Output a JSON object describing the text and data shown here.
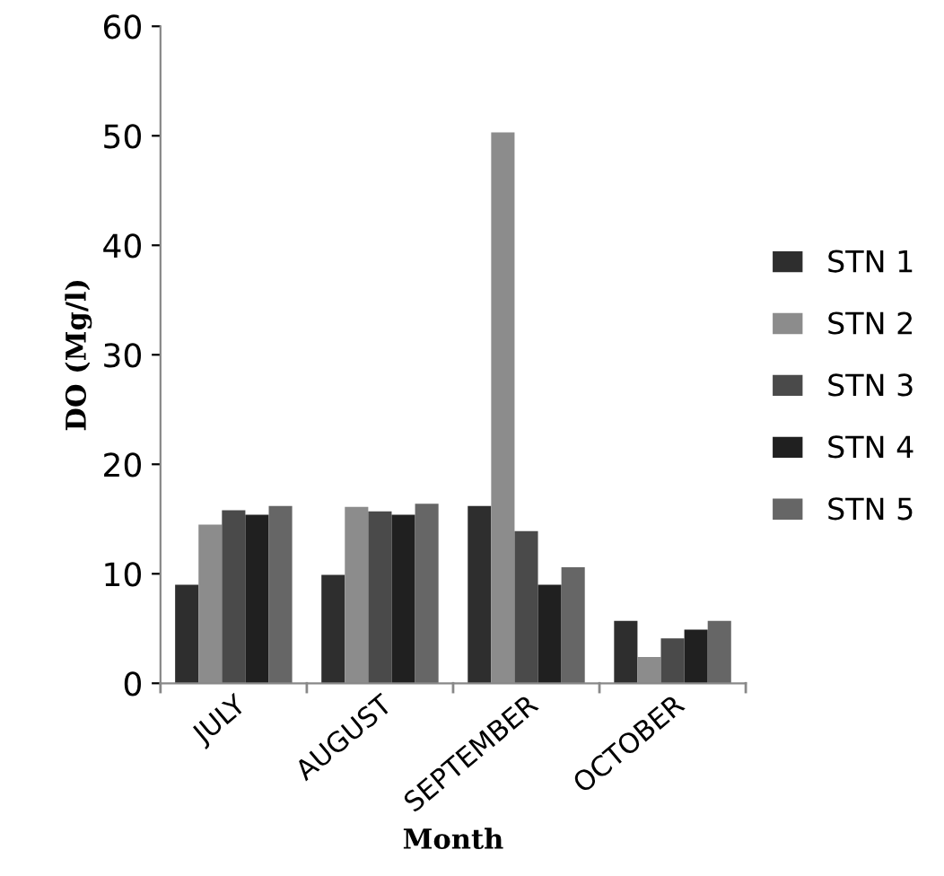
{
  "chart_data": {
    "type": "bar",
    "xlabel": "Month",
    "ylabel": "DO (Mg/l)",
    "categories": [
      "JULY",
      "AUGUST",
      "SEPTEMBER",
      "OCTOBER"
    ],
    "series": [
      {
        "name": "STN 1",
        "color": "#2e2e2e",
        "values": [
          9.0,
          9.9,
          16.2,
          5.7
        ]
      },
      {
        "name": "STN 2",
        "color": "#8c8c8c",
        "values": [
          14.5,
          16.1,
          50.3,
          2.4
        ]
      },
      {
        "name": "STN 3",
        "color": "#4a4a4a",
        "values": [
          15.8,
          15.7,
          13.9,
          4.1
        ]
      },
      {
        "name": "STN 4",
        "color": "#202020",
        "values": [
          15.4,
          15.4,
          9.0,
          4.9
        ]
      },
      {
        "name": "STN 5",
        "color": "#666666",
        "values": [
          16.2,
          16.4,
          10.6,
          5.7
        ]
      }
    ],
    "ylim": [
      0,
      60
    ],
    "yticks": [
      0,
      10,
      20,
      30,
      40,
      50,
      60
    ],
    "grid": false,
    "legend": "right"
  }
}
